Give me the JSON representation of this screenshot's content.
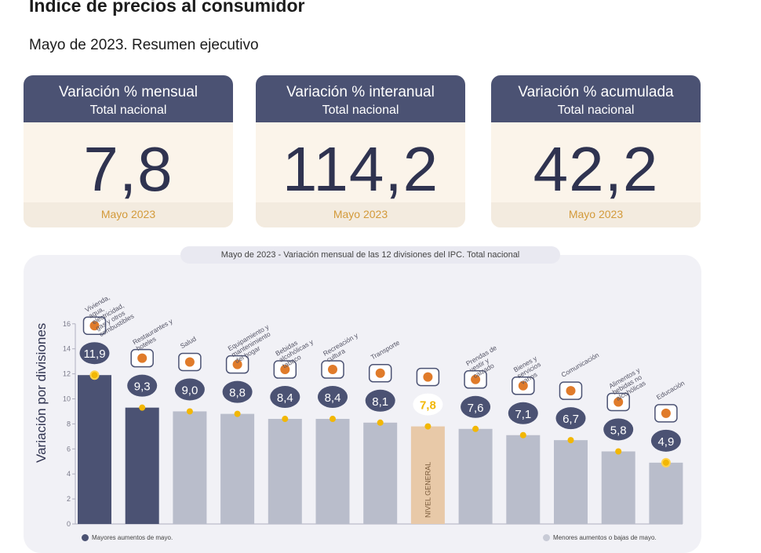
{
  "header": {
    "title": "Índice de precios al consumidor",
    "subtitle": "Mayo de 2023. Resumen ejecutivo"
  },
  "cards": [
    {
      "title": "Variación % mensual",
      "scope": "Total nacional",
      "value": "7,8",
      "period": "Mayo 2023"
    },
    {
      "title": "Variación % interanual",
      "scope": "Total nacional",
      "value": "114,2",
      "period": "Mayo 2023"
    },
    {
      "title": "Variación % acumulada",
      "scope": "Total nacional",
      "value": "42,2",
      "period": "Mayo 2023"
    }
  ],
  "chart_pill": "Mayo de 2023 - Variación mensual de las 12 divisiones del IPC. Total nacional",
  "colors": {
    "dark": "#4b5273",
    "light": "#b9bdcb",
    "general": "#e8c9a8",
    "accent": "#f2b705",
    "orange": "#e07b2a"
  },
  "legend": {
    "left": "Mayores aumentos de mayo.",
    "right": "Menores aumentos o bajas de mayo."
  },
  "chart_data": {
    "type": "bar",
    "title": "Mayo de 2023 - Variación mensual de las 12 divisiones del IPC. Total nacional",
    "ylabel": "Variación por divisiones",
    "ylim": [
      0,
      16
    ],
    "yticks": [
      "0",
      "2",
      "4",
      "6",
      "8",
      "10",
      "12",
      "14",
      "16"
    ],
    "bar_label": "NIVEL GENERAL",
    "categories": [
      "Vivienda, agua, electricidad, gas y otros combustibles",
      "Restaurantes y hoteles",
      "Salud",
      "Equipamiento y mantenimiento del hogar",
      "Bebidas alcohólicas y tabaco",
      "Recreación y cultura",
      "Transporte",
      "",
      "Prendas de vestir y calzado",
      "Bienes y servicios varios",
      "Comunicación",
      "Alimentos y bebidas no alcohólicas",
      "Educación"
    ],
    "values": [
      11.9,
      9.3,
      9.0,
      8.8,
      8.4,
      8.4,
      8.1,
      7.8,
      7.6,
      7.1,
      6.7,
      5.8,
      4.9
    ],
    "value_labels": [
      "11,9",
      "9,3",
      "9,0",
      "8,8",
      "8,4",
      "8,4",
      "8,1",
      "7,8",
      "7,6",
      "7,1",
      "6,7",
      "5,8",
      "4,9"
    ],
    "bar_kinds": [
      "dark",
      "dark",
      "light",
      "light",
      "light",
      "light",
      "light",
      "general",
      "light",
      "light",
      "light",
      "light",
      "light"
    ],
    "icons": [
      "lightbulb-icon",
      "cutlery-icon",
      "medical-cross-icon",
      "washing-machine-icon",
      "bottles-icon",
      "sport-icon",
      "bus-icon",
      "basket-icon",
      "tshirt-icon",
      "scissors-icon",
      "phone-icon",
      "chicken-icon",
      "book-icon"
    ],
    "grid": false
  }
}
